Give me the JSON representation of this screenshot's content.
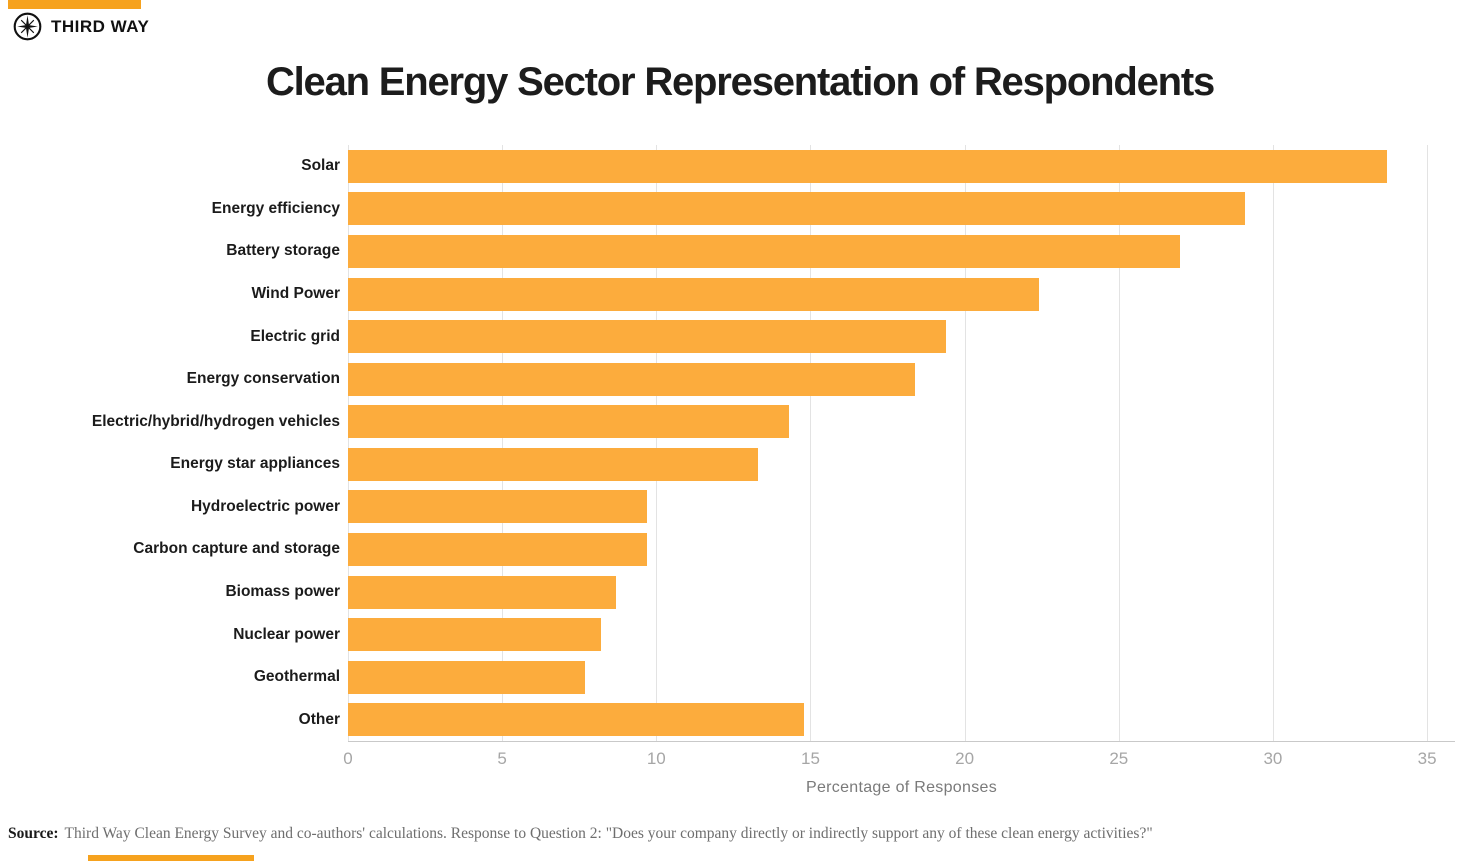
{
  "brand": {
    "name": "THIRD WAY",
    "accent_color": "#F6A21E",
    "logo_icon": "compass-star-icon"
  },
  "header": {
    "title": "Clean Energy Sector Representation of Respondents"
  },
  "chart_data": {
    "type": "bar",
    "orientation": "horizontal",
    "title": "Clean Energy Sector Representation of Respondents",
    "categories": [
      "Solar",
      "Energy efficiency",
      "Battery storage",
      "Wind Power",
      "Electric grid",
      "Energy conservation",
      "Electric/hybrid/hydrogen vehicles",
      "Energy star appliances",
      "Hydroelectric power",
      "Carbon capture and storage",
      "Biomass power",
      "Nuclear power",
      "Geothermal",
      "Other"
    ],
    "values": [
      33.7,
      29.1,
      27.0,
      22.4,
      19.4,
      18.4,
      14.3,
      13.3,
      9.7,
      9.7,
      8.7,
      8.2,
      7.7,
      14.8
    ],
    "bar_color": "#FCAC3D",
    "xlabel": "Percentage of Responses",
    "ylabel": "",
    "xlim": [
      0,
      35
    ],
    "xticks": [
      0,
      5,
      10,
      15,
      20,
      25,
      30,
      35
    ],
    "grid": true,
    "gridline_color": "#e3e3e3",
    "legend": "none"
  },
  "source": {
    "label": "Source:",
    "text": "Third Way Clean Energy Survey and co-authors' calculations. Response to Question 2: \"Does your company directly or indirectly support any of these clean energy activities?\""
  }
}
